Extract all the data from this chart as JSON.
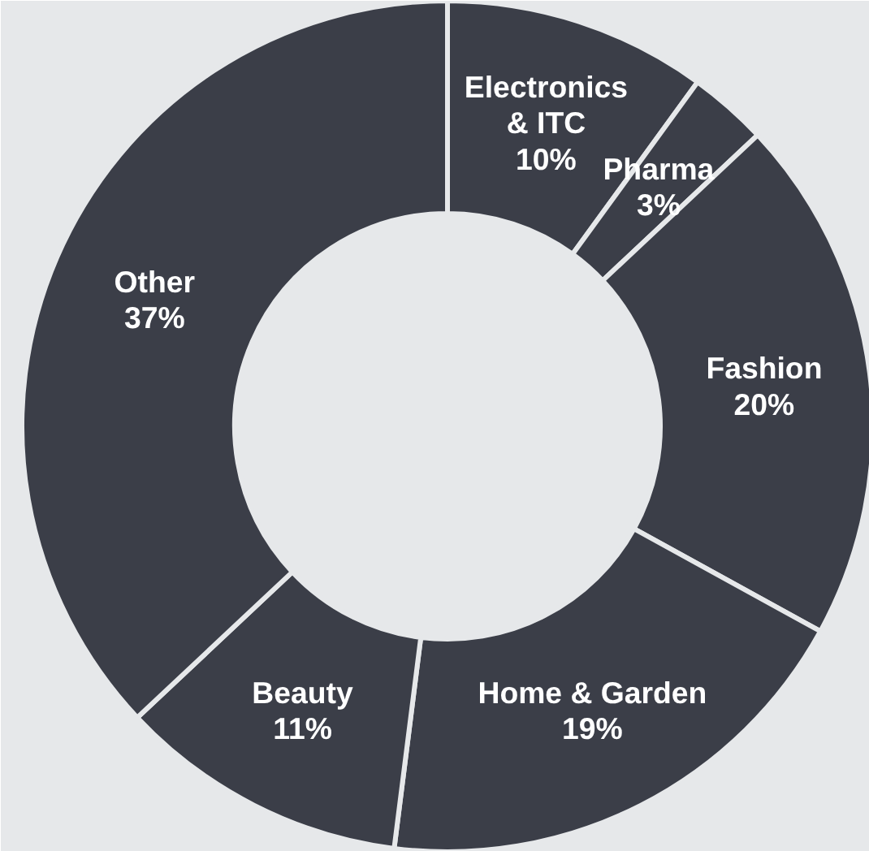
{
  "chart_data": {
    "type": "donut",
    "categories": [
      "Electronics\n& ITC",
      "Pharma",
      "Fashion",
      "Home & Garden",
      "Beauty",
      "Other"
    ],
    "values": [
      10,
      3,
      20,
      19,
      11,
      37
    ],
    "value_labels": [
      "10%",
      "3%",
      "20%",
      "19%",
      "11%",
      "37%"
    ],
    "colors": [
      "#3b3e48",
      "#3b3e48",
      "#3b3e48",
      "#3b3e48",
      "#3b3e48",
      "#3b3e48"
    ],
    "legend": false
  }
}
